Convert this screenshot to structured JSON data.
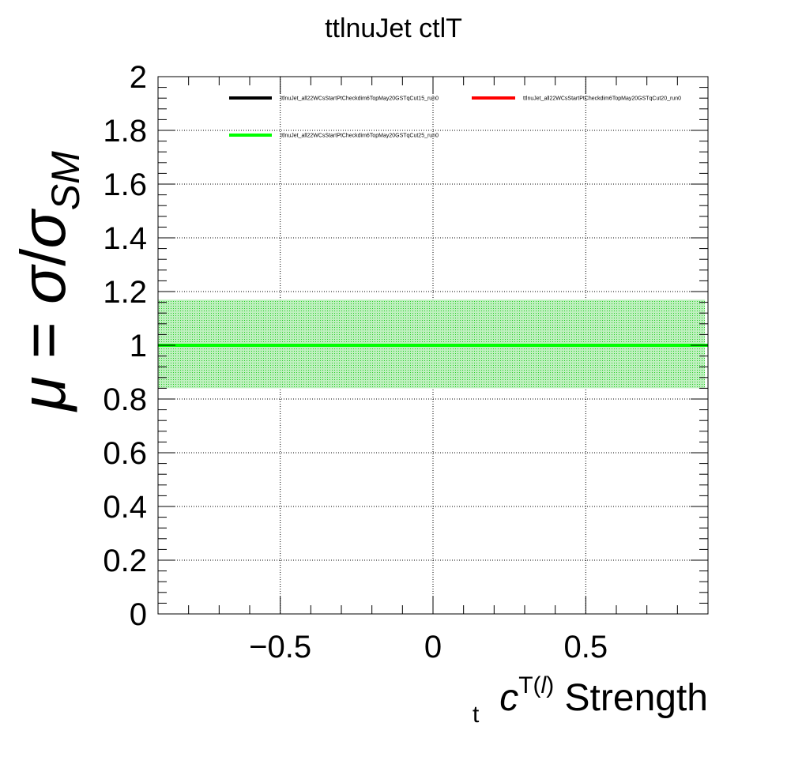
{
  "chart_data": {
    "type": "line",
    "title": "ttlnuJet ctlT",
    "xlabel": {
      "symbol": "c",
      "subscript": "t",
      "superscript": "T(",
      "superscript_italic": "l",
      "superscript_close": ")",
      "suffix": " Strength"
    },
    "ylabel": {
      "mu": "μ",
      "equals": " = ",
      "sigma": "σ",
      "slash": "/",
      "sigma2": "σ",
      "subscript": "SM"
    },
    "xlim": [
      -0.9,
      0.9
    ],
    "ylim": [
      0,
      2
    ],
    "x_ticks": [
      -0.5,
      0,
      0.5
    ],
    "x_tick_labels": [
      "−0.5",
      "0",
      "0.5"
    ],
    "y_ticks": [
      0,
      0.2,
      0.4,
      0.6,
      0.8,
      1,
      1.2,
      1.4,
      1.6,
      1.8,
      2
    ],
    "y_tick_labels": [
      "0",
      "0.2",
      "0.4",
      "0.6",
      "0.8",
      "1",
      "1.2",
      "1.4",
      "1.6",
      "1.8",
      "2"
    ],
    "grid": true,
    "legend_position": "top",
    "series": [
      {
        "name": "ttlnuJet_all22WCsStartPtCheckdim6TopMay20GSTqCut15_run0",
        "color": "#000000",
        "x": [
          -0.9,
          0.9
        ],
        "y": [
          1.0,
          1.0
        ]
      },
      {
        "name": "ttlnuJet_all22WCsStartPtCheckdim6TopMay20GSTqCut20_run0",
        "color": "#ff0000",
        "x": [
          -0.9,
          0.9
        ],
        "y": [
          1.0,
          1.0
        ]
      },
      {
        "name": "ttlnuJet_all22WCsStartPtCheckdim6TopMay20GSTqCut25_run0",
        "color": "#00ff00",
        "x": [
          -0.9,
          0.9
        ],
        "y": [
          1.0,
          1.0
        ]
      }
    ],
    "band": {
      "color": "#00cc00",
      "x": [
        -0.9,
        0.89
      ],
      "lower": [
        0.84,
        0.84
      ],
      "upper": [
        1.17,
        1.17
      ]
    }
  }
}
